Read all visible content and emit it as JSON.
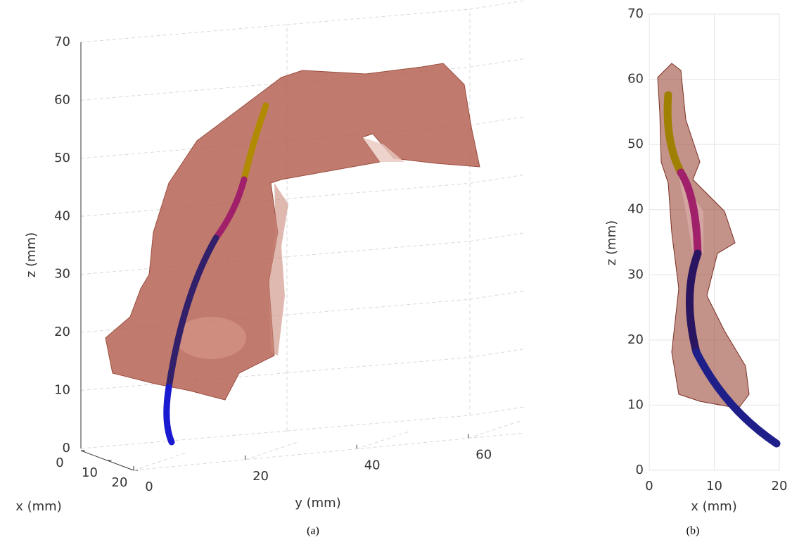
{
  "chart_data": [
    {
      "type": "surface3d",
      "caption": "(a)",
      "xlabel": "x (mm)",
      "ylabel": "y (mm)",
      "zlabel": "z (mm)",
      "xlim": [
        0,
        20
      ],
      "xticks": [
        0,
        10,
        20
      ],
      "ylim": [
        0,
        70
      ],
      "yticks": [
        0,
        20,
        40,
        60
      ],
      "zlim": [
        0,
        70
      ],
      "zticks": [
        0,
        10,
        20,
        30,
        40,
        50,
        60,
        70
      ],
      "grid": true
    },
    {
      "type": "projection2d",
      "caption": "(b)",
      "xlabel": "x (mm)",
      "ylabel": "z (mm)",
      "xlim": [
        0,
        20
      ],
      "xticks": [
        0,
        10,
        20
      ],
      "ylim": [
        0,
        70
      ],
      "yticks": [
        0,
        10,
        20,
        30,
        40,
        50,
        60,
        70
      ],
      "grid": true
    }
  ]
}
